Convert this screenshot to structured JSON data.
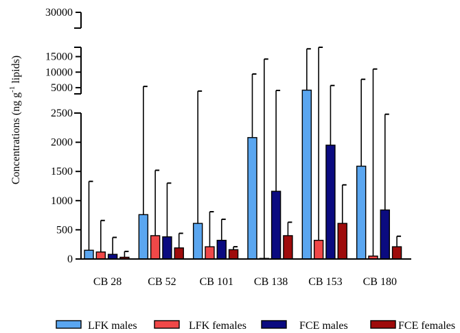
{
  "chart_data": {
    "type": "bar",
    "ylabel_main": "Concentrations (ng g",
    "ylabel_sup": "-1",
    "ylabel_tail": " lipids)",
    "categories": [
      "CB 28",
      "CB 52",
      "CB 101",
      "CB 138",
      "CB 153",
      "CB 180"
    ],
    "series": [
      {
        "name": "LFK males",
        "color": "#5aa6f0",
        "values": [
          150,
          760,
          610,
          2080,
          4200,
          1590
        ],
        "errors": [
          1330,
          5400,
          3900,
          9400,
          17500,
          7700
        ]
      },
      {
        "name": "LFK females",
        "color": "#f04848",
        "values": [
          120,
          400,
          210,
          10,
          320,
          50
        ],
        "errors": [
          660,
          1520,
          810,
          14200,
          27000,
          11000
        ]
      },
      {
        "name": "FCE males",
        "color": "#0b0b80",
        "values": [
          80,
          380,
          320,
          1160,
          1950,
          840
        ],
        "errors": [
          370,
          1300,
          680,
          4100,
          5700,
          2480
        ]
      },
      {
        "name": "FCE females",
        "color": "#9e0b0b",
        "values": [
          30,
          190,
          160,
          400,
          610,
          210
        ],
        "errors": [
          130,
          440,
          210,
          630,
          1270,
          390
        ]
      }
    ],
    "y_axis_segments": {
      "lower": {
        "range": [
          0,
          2500
        ],
        "ticks": [
          "0",
          "500",
          "1000",
          "1500",
          "2000",
          "2500"
        ]
      },
      "middle": {
        "range": [
          3000,
          18000
        ],
        "ticks": [
          "5000",
          "10000",
          "15000"
        ]
      },
      "upper": {
        "range": [
          27500,
          30000
        ],
        "ticks": [
          "30000"
        ]
      }
    },
    "legend_position": "bottom"
  }
}
